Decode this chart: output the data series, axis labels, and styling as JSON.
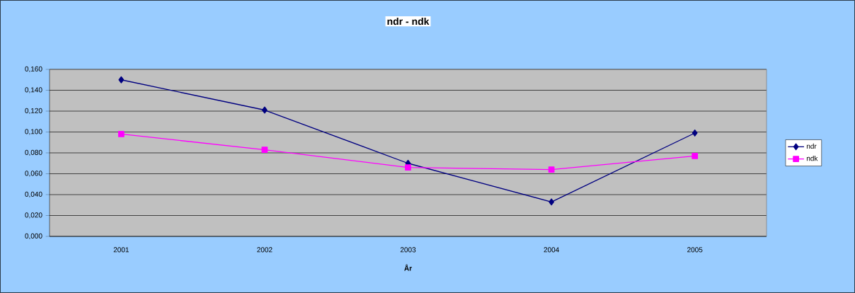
{
  "chart_data": {
    "type": "line",
    "title": "ndr - ndk",
    "xlabel": "År",
    "categories": [
      "2001",
      "2002",
      "2003",
      "2004",
      "2005"
    ],
    "series": [
      {
        "name": "ndr",
        "color": "#000080",
        "marker": "diamond",
        "values": [
          0.15,
          0.121,
          0.07,
          0.033,
          0.099
        ]
      },
      {
        "name": "ndk",
        "color": "#ff00ff",
        "marker": "square",
        "values": [
          0.098,
          0.083,
          0.066,
          0.064,
          0.077
        ]
      }
    ],
    "ylim": [
      0,
      0.16
    ],
    "yticks": [
      {
        "value": 0,
        "label": "0,000"
      },
      {
        "value": 0.02,
        "label": "0,020"
      },
      {
        "value": 0.04,
        "label": "0,040"
      },
      {
        "value": 0.06,
        "label": "0,060"
      },
      {
        "value": 0.08,
        "label": "0,080"
      },
      {
        "value": 0.1,
        "label": "0,100"
      },
      {
        "value": 0.12,
        "label": "0,120"
      },
      {
        "value": 0.14,
        "label": "0,140"
      },
      {
        "value": 0.16,
        "label": "0,160"
      }
    ],
    "grid": "y",
    "legend": "right"
  }
}
